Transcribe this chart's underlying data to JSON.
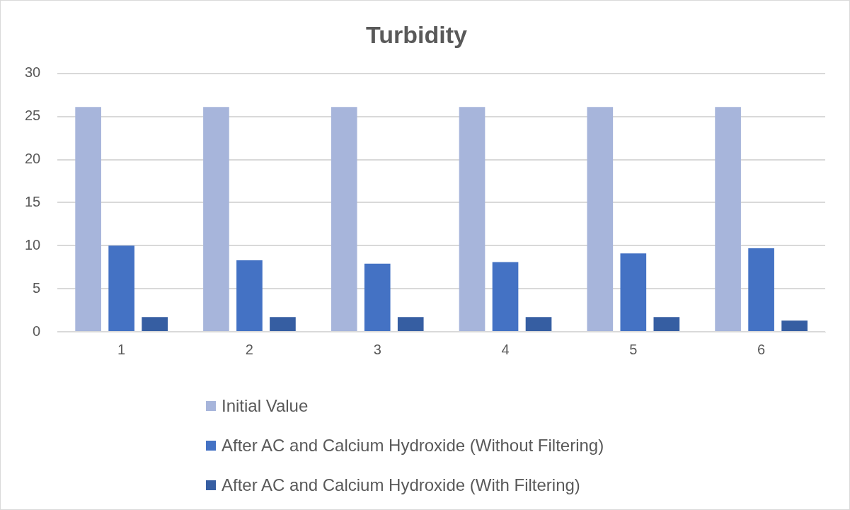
{
  "chart_data": {
    "type": "bar",
    "title": "Turbidity",
    "categories": [
      "1",
      "2",
      "3",
      "4",
      "5",
      "6"
    ],
    "series": [
      {
        "name": "Initial Value",
        "color": "#a7b5db",
        "values": [
          26.1,
          26.1,
          26.1,
          26.1,
          26.1,
          26.1
        ]
      },
      {
        "name": "After AC and Calcium Hydroxide (Without Filtering)",
        "color": "#4472c4",
        "values": [
          10.0,
          8.3,
          7.9,
          8.1,
          9.1,
          9.7
        ]
      },
      {
        "name": "After AC and Calcium Hydroxide (With Filtering)",
        "color": "#365ea2",
        "values": [
          1.7,
          1.7,
          1.7,
          1.7,
          1.7,
          1.3
        ]
      }
    ],
    "ylim": [
      0,
      30
    ],
    "yticks": [
      0,
      5,
      10,
      15,
      20,
      25,
      30
    ],
    "grid": "y",
    "legend": "bottom"
  }
}
